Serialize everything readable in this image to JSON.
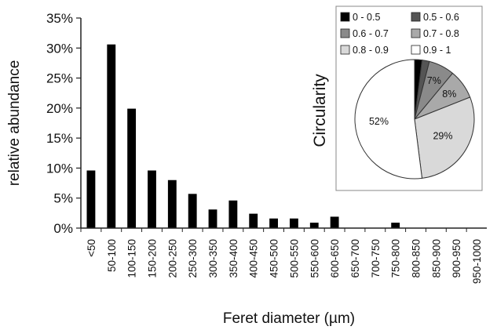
{
  "chart_data": [
    {
      "type": "bar",
      "xlabel": "Feret diameter (µm)",
      "ylabel": "relative  abundance",
      "ylim": [
        0,
        35
      ],
      "yticks": [
        "0%",
        "5%",
        "10%",
        "15%",
        "20%",
        "25%",
        "30%",
        "35%"
      ],
      "categories": [
        "<50",
        "50-100",
        "100-150",
        "150-200",
        "200-250",
        "250-300",
        "300-350",
        "350-400",
        "400-450",
        "450-500",
        "500-550",
        "550-600",
        "600-650",
        "650-700",
        "700-750",
        "750-800",
        "800-850",
        "850-900",
        "900-950",
        "950-1000"
      ],
      "values": [
        9.6,
        30.6,
        19.9,
        9.6,
        8.0,
        5.7,
        3.1,
        4.6,
        2.4,
        1.6,
        1.6,
        0.9,
        1.9,
        0,
        0,
        0.9,
        0,
        0,
        0,
        0
      ],
      "color": "#000000",
      "grid": false
    },
    {
      "type": "pie",
      "title": "Circularity",
      "legend_position": "top",
      "slices": [
        {
          "label": "0 - 0.5",
          "value": 2,
          "color": "#000000",
          "text": ""
        },
        {
          "label": "0.5 - 0.6",
          "value": 2,
          "color": "#555555",
          "text": ""
        },
        {
          "label": "0.6 - 0.7",
          "value": 7,
          "color": "#8a8a8a",
          "text": "7%"
        },
        {
          "label": "0.7 - 0.8",
          "value": 8,
          "color": "#a9a9a9",
          "text": "8%"
        },
        {
          "label": "0.8 - 0.9",
          "value": 29,
          "color": "#d9d9d9",
          "text": "29%"
        },
        {
          "label": "0.9 - 1",
          "value": 52,
          "color": "#ffffff",
          "text": "52%"
        }
      ]
    }
  ]
}
